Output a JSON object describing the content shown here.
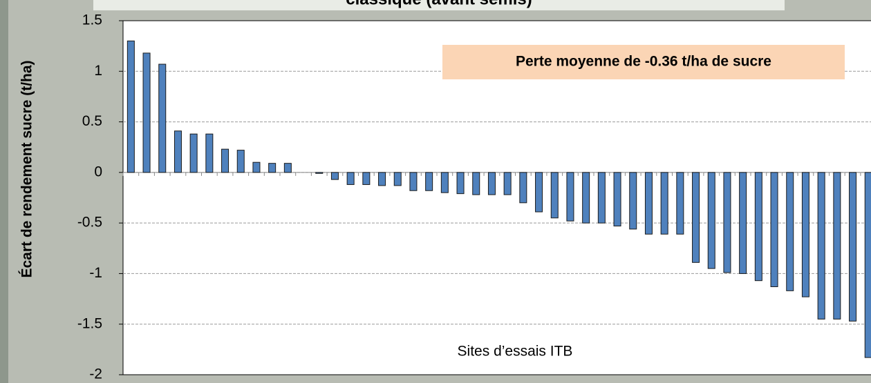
{
  "chart_data": {
    "type": "bar",
    "title": "classique (avant semis)",
    "y_label": "Écart de rendement sucre (t/ha)",
    "x_label": "Sites d’essais ITB",
    "annotation": "Perte moyenne de -0.36 t/ha de sucre",
    "categories": [
      null,
      null,
      null,
      null,
      null,
      null,
      null,
      null,
      null,
      null,
      null,
      null,
      null,
      null,
      null,
      null,
      null,
      null,
      null,
      null,
      null,
      null,
      null,
      null,
      null,
      null,
      null,
      null,
      null,
      null,
      null,
      null,
      null,
      null,
      null,
      null,
      null,
      null,
      null,
      null,
      null,
      null,
      null,
      null,
      null,
      null,
      null,
      null
    ],
    "values": [
      1.3,
      1.18,
      1.07,
      0.41,
      0.38,
      0.38,
      0.23,
      0.22,
      0.1,
      0.09,
      0.09,
      0,
      -0.01,
      -0.07,
      -0.12,
      -0.12,
      -0.13,
      -0.13,
      -0.18,
      -0.18,
      -0.2,
      -0.21,
      -0.22,
      -0.22,
      -0.22,
      -0.3,
      -0.39,
      -0.45,
      -0.48,
      -0.5,
      -0.5,
      -0.53,
      -0.56,
      -0.61,
      -0.61,
      -0.61,
      -0.89,
      -0.95,
      -0.99,
      -1.0,
      -1.07,
      -1.13,
      -1.17,
      -1.23,
      -1.45,
      -1.45,
      -1.47,
      -1.83
    ],
    "color": "#4f81bd",
    "ylim": [
      -2,
      1.5
    ],
    "yticks": [
      -2,
      -1.5,
      -1,
      -0.5,
      0,
      0.5,
      1,
      1.5
    ],
    "grid": true
  }
}
